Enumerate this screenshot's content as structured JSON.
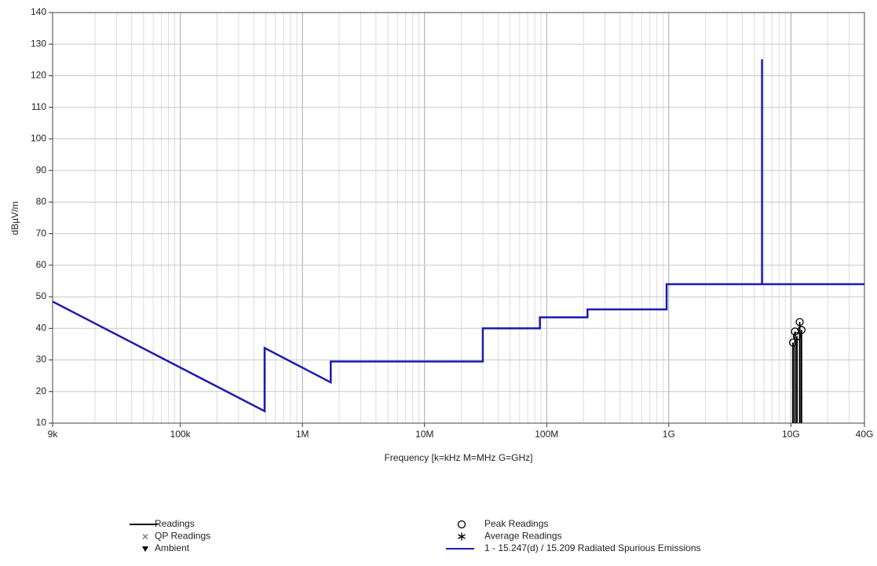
{
  "chart_data": {
    "type": "line",
    "xlabel": "Frequency [k=kHz M=MHz G=GHz]",
    "ylabel": "dBµV/m",
    "xscale": "log",
    "xlim": [
      9000,
      40000000000
    ],
    "ylim": [
      10,
      140
    ],
    "xticks": [
      {
        "value": 9000,
        "label": "9k"
      },
      {
        "value": 100000,
        "label": "100k"
      },
      {
        "value": 1000000,
        "label": "1M"
      },
      {
        "value": 10000000,
        "label": "10M"
      },
      {
        "value": 100000000,
        "label": "100M"
      },
      {
        "value": 1000000000,
        "label": "1G"
      },
      {
        "value": 10000000000,
        "label": "10G"
      },
      {
        "value": 40000000000,
        "label": "40G"
      }
    ],
    "yticks": [
      10,
      20,
      30,
      40,
      50,
      60,
      70,
      80,
      90,
      100,
      110,
      120,
      130,
      140
    ],
    "grid": true,
    "minor_grid": true,
    "series": [
      {
        "name": "Readings",
        "kind": "stem",
        "marker": "line",
        "color": "#000000",
        "x": [
          10400000000,
          10800000000,
          11200000000,
          11800000000,
          12200000000
        ],
        "values": [
          35.5,
          39,
          37.5,
          42,
          39.5
        ]
      },
      {
        "name": "QP Readings",
        "kind": "scatter",
        "marker": "x",
        "color": "#555555",
        "x": [],
        "values": []
      },
      {
        "name": "Ambient",
        "kind": "scatter",
        "marker": "triangle",
        "color": "#000000",
        "x": [],
        "values": []
      },
      {
        "name": "Peak Readings",
        "kind": "scatter",
        "marker": "circle",
        "color": "#000000",
        "x": [
          10400000000,
          10800000000,
          11200000000,
          11800000000,
          12200000000
        ],
        "values": [
          35.5,
          39,
          37.5,
          42,
          39.5
        ]
      },
      {
        "name": "Average Readings",
        "kind": "scatter",
        "marker": "star",
        "color": "#000000",
        "x": [],
        "values": []
      },
      {
        "name": "1 - 15.247(d) / 15.209 Radiated Spurious Emissions",
        "kind": "line",
        "marker": "line",
        "color": "#1c1cb0",
        "x": [
          9000,
          490000,
          490000,
          1705000,
          1705000,
          30000000,
          30000000,
          88000000,
          88000000,
          216000000,
          216000000,
          960000000,
          960000000,
          5800000000,
          5800000000,
          5800000000,
          40000000000
        ],
        "values": [
          48.5,
          13.8,
          33.8,
          22.9,
          29.5,
          29.5,
          40,
          40,
          43.5,
          43.5,
          46,
          46,
          54,
          54,
          125.2,
          54,
          54
        ]
      }
    ]
  }
}
